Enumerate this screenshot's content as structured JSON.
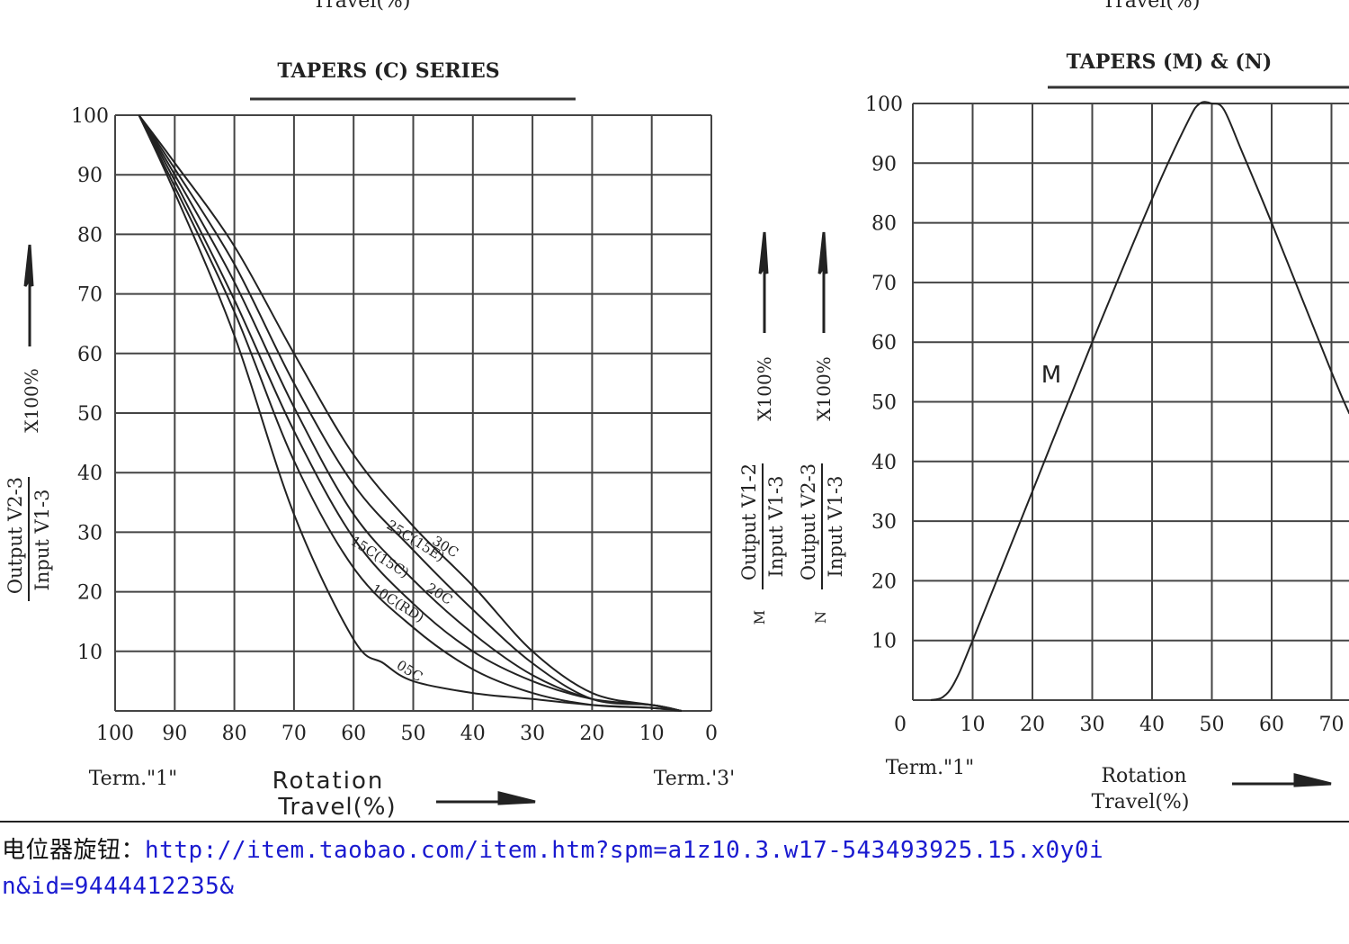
{
  "top_fragments": [
    "Travel(%)",
    "Travel(%)"
  ],
  "chart_data": [
    {
      "type": "line",
      "title": "TAPERS (C) SERIES",
      "xlim": [
        100,
        0
      ],
      "ylim": [
        0,
        100
      ],
      "x_ticks": [
        "100",
        "90",
        "80",
        "70",
        "60",
        "50",
        "40",
        "30",
        "20",
        "10",
        "0"
      ],
      "y_ticks": [
        "100",
        "90",
        "80",
        "70",
        "60",
        "50",
        "40",
        "30",
        "20",
        "10"
      ],
      "ylabel_numerator": "Output V2-3",
      "ylabel_denominator": "Input V1-3",
      "ylabel_multiplier": "X100%",
      "term_left": "Term.\"1\"",
      "term_right": "Term.'3'",
      "xlabel_line1": "Rotation",
      "xlabel_line2": "Travel(%)",
      "grid": true,
      "series": [
        {
          "name": "30C",
          "x": [
            96,
            90,
            80,
            70,
            60,
            50,
            40,
            30,
            20,
            10,
            5
          ],
          "y": [
            100,
            92,
            78,
            60,
            43,
            31,
            21,
            10,
            3,
            1,
            0
          ]
        },
        {
          "name": "25C(15E)",
          "x": [
            96,
            90,
            80,
            70,
            60,
            50,
            40,
            30,
            20,
            10,
            5
          ],
          "y": [
            100,
            91,
            75,
            55,
            38,
            27,
            17,
            8,
            2,
            1,
            0
          ]
        },
        {
          "name": "20C",
          "x": [
            96,
            90,
            80,
            70,
            60,
            50,
            40,
            30,
            20,
            10,
            5
          ],
          "y": [
            100,
            90,
            72,
            51,
            33,
            22,
            13,
            6,
            2,
            1,
            0
          ]
        },
        {
          "name": "15C(15C)",
          "x": [
            96,
            90,
            80,
            70,
            60,
            50,
            40,
            30,
            20,
            10,
            5
          ],
          "y": [
            100,
            89,
            69,
            47,
            29,
            18,
            10,
            5,
            2,
            1,
            0
          ]
        },
        {
          "name": "10C(RD)",
          "x": [
            96,
            90,
            80,
            70,
            60,
            50,
            40,
            30,
            20,
            10,
            5
          ],
          "y": [
            100,
            88,
            67,
            42,
            24,
            14,
            7,
            3,
            1,
            0.5,
            0
          ]
        },
        {
          "name": "05C",
          "x": [
            96,
            90,
            80,
            70,
            60,
            55,
            50,
            40,
            30,
            20,
            10,
            5
          ],
          "y": [
            100,
            87,
            63,
            33,
            12,
            8,
            5,
            3,
            2,
            1,
            0.5,
            0
          ]
        }
      ]
    },
    {
      "type": "line",
      "title": "TAPERS (M) & (N)",
      "xlim": [
        0,
        70
      ],
      "ylim": [
        0,
        100
      ],
      "x_ticks": [
        "0",
        "10",
        "20",
        "30",
        "40",
        "50",
        "60",
        "70"
      ],
      "y_ticks": [
        "100",
        "90",
        "80",
        "70",
        "60",
        "50",
        "40",
        "30",
        "20",
        "10"
      ],
      "ylabel_m_numerator": "Output V1-2",
      "ylabel_m_denominator": "Input V1-3",
      "ylabel_n_numerator": "Output V2-3",
      "ylabel_n_denominator": "Input V1-3",
      "ylabel_multiplier": "X100%",
      "ylabel_m_letter": "M",
      "ylabel_n_letter": "N",
      "term_left": "Term.\"1\"",
      "xlabel_line1": "Rotation",
      "xlabel_line2": "Travel(%)",
      "grid": true,
      "series": [
        {
          "name": "M",
          "x": [
            3,
            5,
            7,
            10,
            20,
            30,
            40,
            46,
            48,
            50,
            52,
            55,
            60,
            70,
            73
          ],
          "y": [
            0,
            0.5,
            3,
            10,
            35,
            60,
            84,
            97,
            100,
            100,
            99,
            92,
            80,
            55,
            48
          ]
        }
      ]
    }
  ],
  "footer": {
    "label": "电位器旋钮：",
    "url_line1": "http://item.taobao.com/item.htm?spm=a1z10.3.w17-543493925.15.x0y0i",
    "url_line2": "n&id=9444412235&"
  }
}
